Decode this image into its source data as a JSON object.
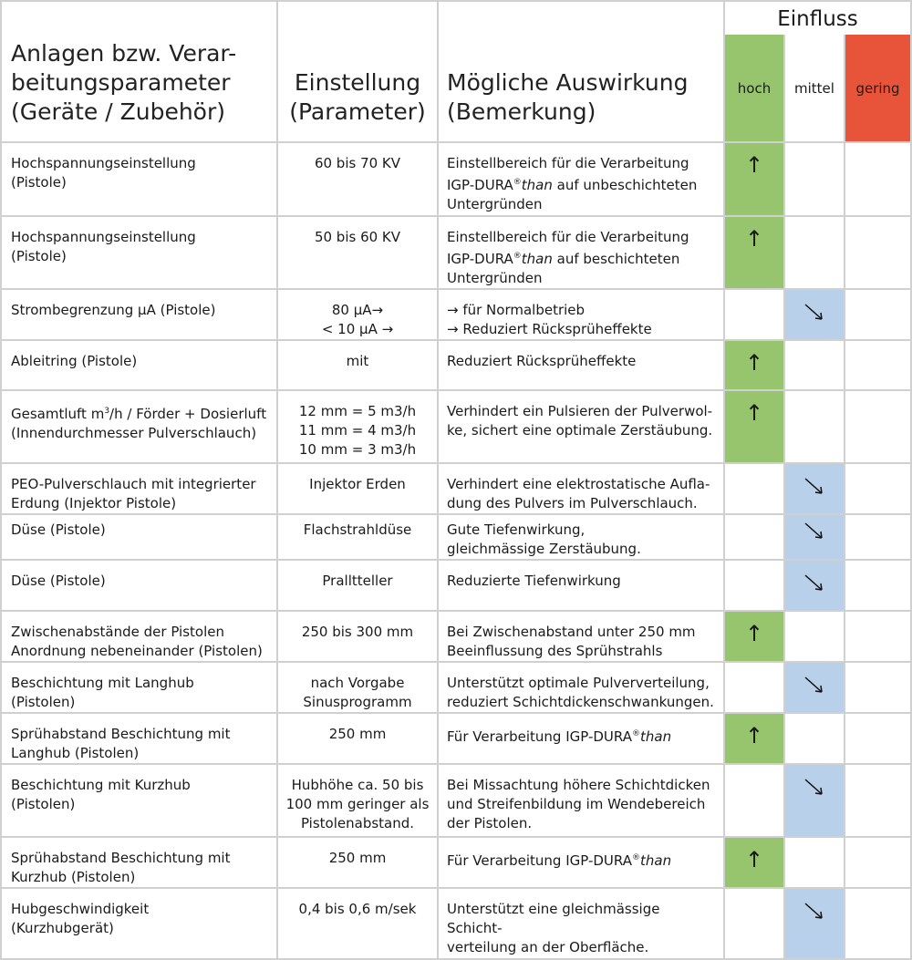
{
  "header": {
    "param_line1": "Anlagen bzw. Verar-",
    "param_line2": "beitungsparameter",
    "param_line3": "(Geräte / Zubehör)",
    "setting_line1": "Einstellung",
    "setting_line2": "(Parameter)",
    "effect_line1": "Mögliche Auswirkung",
    "effect_line2": "(Bemerkung)",
    "einfluss": "Einfluss",
    "levels": {
      "hoch": "hoch",
      "mittel": "mittel",
      "gering": "gering"
    }
  },
  "colors": {
    "hoch": "#97c56e",
    "mittel": "#b9d0ea",
    "gering": "#e8543a"
  },
  "icons": {
    "up": "arrow-up-icon",
    "down": "arrow-down-right-icon"
  },
  "rows": [
    {
      "param": [
        "Hochspannungseinstellung",
        "(Pistole)"
      ],
      "setting": [
        "60 bis 70 KV"
      ],
      "effect": {
        "l1": "Einstellbereich für die Verarbeitung",
        "l2_pre": "IGP-DURA",
        "sup": "®",
        "than": "than",
        "l2_post": " auf unbeschichteten",
        "l3": "Untergründen"
      },
      "einfluss": "hoch",
      "arrow": "↑"
    },
    {
      "param": [
        "Hochspannungseinstellung",
        "(Pistole)"
      ],
      "setting": [
        "50 bis 60 KV"
      ],
      "effect": {
        "l1": "Einstellbereich für die Verarbeitung",
        "l2_pre": "IGP-DURA",
        "sup": "®",
        "than": "than",
        "l2_post": " auf beschichteten",
        "l3": "Untergründen"
      },
      "einfluss": "hoch",
      "arrow": "↑"
    },
    {
      "param": [
        "Strombegrenzung µA (Pistole)"
      ],
      "setting": [
        "80 µA→",
        "< 10 µA →"
      ],
      "effect": [
        "→ für Normalbetrieb",
        "→ Reduziert Rücksprüheffekte"
      ],
      "einfluss": "mittel"
    },
    {
      "param": [
        "Ableitring (Pistole)"
      ],
      "setting": [
        "mit"
      ],
      "effect": [
        "Reduziert Rücksprüheffekte"
      ],
      "einfluss": "hoch",
      "arrow": "↑"
    },
    {
      "param_l1_pre": "Gesamtluft m",
      "param_l1_sup": "3",
      "param_l1_post": "/h / Förder + Dosierluft",
      "param_l2": "(Innendurchmesser Pulverschlauch)",
      "setting": [
        "12 mm = 5 m3/h",
        "11 mm = 4 m3/h",
        "10 mm = 3 m3/h"
      ],
      "effect": [
        "Verhindert ein Pulsieren der Pulverwol-",
        "ke, sichert eine optimale Zerstäubung."
      ],
      "einfluss": "hoch",
      "arrow": "↑"
    },
    {
      "param": [
        "PEO-Pulverschlauch mit integrierter",
        "Erdung  (Injektor Pistole)"
      ],
      "setting": [
        "Injektor Erden"
      ],
      "effect": [
        "Verhindert eine elektrostatische Aufla-",
        "dung des Pulvers im Pulverschlauch."
      ],
      "einfluss": "mittel"
    },
    {
      "param": [
        "Düse (Pistole)"
      ],
      "setting": [
        "Flachstrahldüse"
      ],
      "effect": [
        "Gute Tiefenwirkung,",
        "gleichmässige Zerstäubung."
      ],
      "einfluss": "mittel"
    },
    {
      "param": [
        "Düse (Pistole)"
      ],
      "setting": [
        "Pralltteller"
      ],
      "effect": [
        "Reduzierte Tiefenwirkung"
      ],
      "einfluss": "mittel"
    },
    {
      "param": [
        "Zwischenabstände der Pistolen",
        "Anordnung nebeneinander (Pistolen)"
      ],
      "setting": [
        "250 bis 300 mm"
      ],
      "effect": [
        "Bei Zwischenabstand unter 250 mm",
        "Beeinflussung des Sprühstrahls"
      ],
      "einfluss": "hoch",
      "arrow": "↑"
    },
    {
      "param": [
        "Beschichtung mit Langhub",
        "(Pistolen)"
      ],
      "setting": [
        "nach Vorgabe",
        "Sinusprogramm"
      ],
      "effect": [
        "Unterstützt optimale Pulververteilung,",
        "reduziert Schichtdickenschwankungen."
      ],
      "einfluss": "mittel"
    },
    {
      "param": [
        "Sprühabstand Beschichtung mit",
        "Langhub (Pistolen)"
      ],
      "setting": [
        "250 mm"
      ],
      "effect": {
        "pre": "Für Verarbeitung IGP-DURA",
        "sup": "®",
        "than": "than"
      },
      "einfluss": "hoch",
      "arrow": "↑"
    },
    {
      "param": [
        "Beschichtung mit Kurzhub",
        "(Pistolen)"
      ],
      "setting": [
        "Hubhöhe ca. 50 bis",
        "100 mm geringer als",
        "Pistolenabstand."
      ],
      "effect": [
        "Bei Missachtung höhere Schichtdicken",
        "und Streifenbildung im Wendebereich",
        "der Pistolen."
      ],
      "einfluss": "mittel"
    },
    {
      "param": [
        "Sprühabstand Beschichtung mit",
        "Kurzhub  (Pistolen)"
      ],
      "setting": [
        "250 mm"
      ],
      "effect": {
        "pre": "Für Verarbeitung IGP-DURA",
        "sup": "®",
        "than": "than"
      },
      "einfluss": "hoch",
      "arrow": "↑"
    },
    {
      "param": [
        "Hubgeschwindigkeit",
        "(Kurzhubgerät)"
      ],
      "setting": [
        "0,4 bis 0,6 m/sek"
      ],
      "effect": [
        "Unterstützt eine gleichmässige Schicht-",
        "verteilung an der Oberfläche."
      ],
      "einfluss": "mittel"
    }
  ]
}
